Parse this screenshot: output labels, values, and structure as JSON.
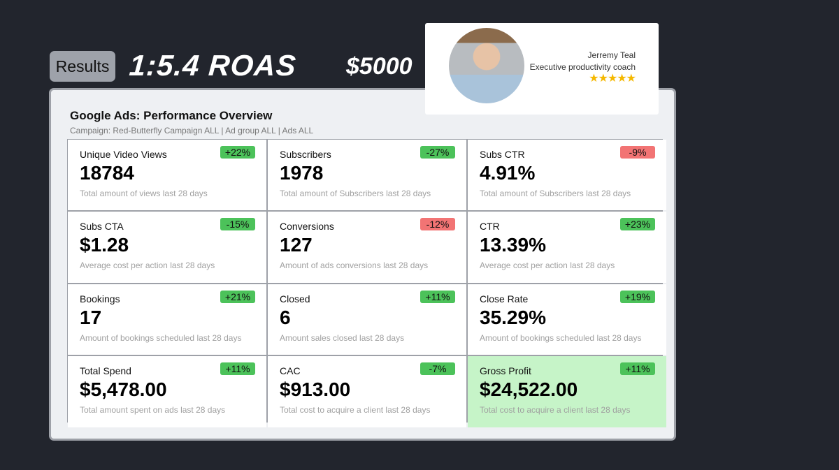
{
  "header": {
    "results_label": "Results",
    "roas": "1:5.4 ROAS",
    "spend": "$5000"
  },
  "profile": {
    "name": "Jerremy Teal",
    "role": "Executive productivity coach",
    "stars": "★★★★★",
    "rating": 5
  },
  "overview": {
    "title": "Google Ads: Performance Overview",
    "subtitle": "Campaign: Red-Butterfly Campaign ALL | Ad group ALL | Ads ALL"
  },
  "colors": {
    "positive": "#4cc25a",
    "negative": "#f27474",
    "highlight": "#c6f4c8"
  },
  "metrics": [
    {
      "label": "Unique Video Views",
      "value": "18784",
      "change": "+22%",
      "status": "positive",
      "desc": "Total amount of views last 28 days"
    },
    {
      "label": "Subscribers",
      "value": "1978",
      "change": "-27%",
      "status": "positive",
      "desc": "Total amount of Subscribers last 28 days"
    },
    {
      "label": "Subs CTR",
      "value": "4.91%",
      "change": "-9%",
      "status": "negative",
      "desc": "Total amount of Subscribers last 28 days"
    },
    {
      "label": "Subs CTA",
      "value": "$1.28",
      "change": "-15%",
      "status": "positive",
      "desc": "Average cost per action last 28 days"
    },
    {
      "label": "Conversions",
      "value": "127",
      "change": "-12%",
      "status": "negative",
      "desc": "Amount of ads conversions last 28 days"
    },
    {
      "label": "CTR",
      "value": "13.39%",
      "change": "+23%",
      "status": "positive",
      "desc": "Average cost per action last 28 days"
    },
    {
      "label": "Bookings",
      "value": "17",
      "change": "+21%",
      "status": "positive",
      "desc": "Amount of bookings scheduled last 28 days"
    },
    {
      "label": "Closed",
      "value": "6",
      "change": "+11%",
      "status": "positive",
      "desc": "Amount sales closed last 28 days"
    },
    {
      "label": "Close Rate",
      "value": "35.29%",
      "change": "+19%",
      "status": "positive",
      "desc": "Amount of bookings scheduled last 28 days"
    },
    {
      "label": "Total Spend",
      "value": "$5,478.00",
      "change": "+11%",
      "status": "positive",
      "desc": "Total amount spent on ads last 28 days"
    },
    {
      "label": "CAC",
      "value": "$913.00",
      "change": "-7%",
      "status": "positive",
      "desc": "Total cost to acquire a client last 28 days"
    },
    {
      "label": "Gross Profit",
      "value": "$24,522.00",
      "change": "+11%",
      "status": "positive",
      "desc": "Total cost to acquire a client last 28 days",
      "highlight": true
    }
  ]
}
